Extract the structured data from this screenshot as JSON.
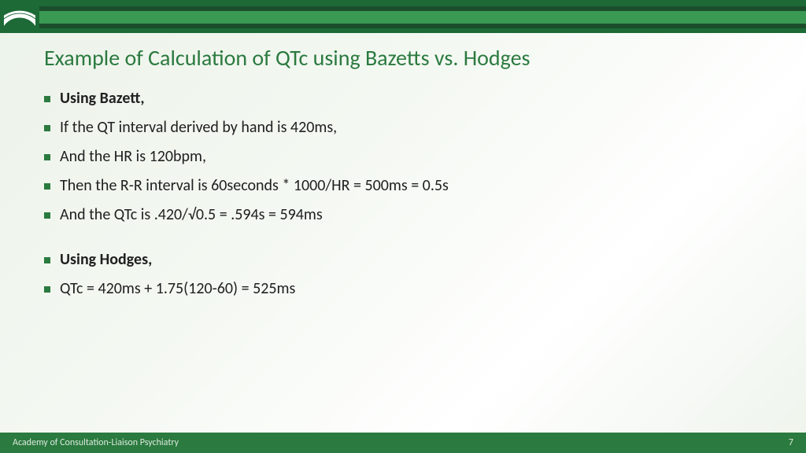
{
  "colors": {
    "accent": "#2b7a3f",
    "header_dark": "#1b4d2b",
    "header_light": "#3a9a53",
    "header_mid": "#1d6a37",
    "text": "#202020",
    "footer_bg": "#2b7a3f",
    "footer_text": "#e6f0e8",
    "bg_gradient_from": "#ecf3ea",
    "bg_gradient_to": "#ffffff"
  },
  "title": "Example of Calculation of QTc using Bazetts vs. Hodges",
  "bullets": [
    {
      "text": "Using Bazett,",
      "bold": true
    },
    {
      "text": "If the QT interval derived by hand is 420ms,"
    },
    {
      "text": "And the HR is 120bpm,"
    },
    {
      "text": "Then the R-R interval is 60seconds * 1000/HR = 500ms = 0.5s"
    },
    {
      "text": "And the QTc is .420/√0.5 = .594s = 594ms"
    },
    {
      "spacer": true
    },
    {
      "text": "Using Hodges,",
      "bold": true
    },
    {
      "text": "QTc = 420ms + 1.75(120-60) = 525ms"
    }
  ],
  "footer": {
    "org": "Academy of Consultation-Liaison Psychiatry",
    "page": "7"
  },
  "typography": {
    "title_fontsize": 28,
    "body_fontsize": 20,
    "footer_fontsize": 12
  }
}
